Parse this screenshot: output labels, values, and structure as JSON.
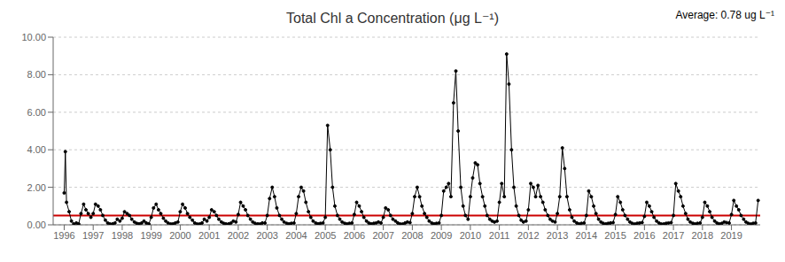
{
  "chart_data": {
    "type": "line",
    "title": "Total Chl a Concentration (μg L⁻¹)",
    "annotations": [
      {
        "text": "Average: 0.78 ug L⁻¹"
      }
    ],
    "reference_lines": [
      {
        "y": 0.5,
        "color": "#cc0000"
      }
    ],
    "color": "#000000",
    "marker": "circle",
    "line_style": "solid",
    "grid": true,
    "xlim": [
      1995.62,
      2019.99
    ],
    "xticks": [
      1996,
      1997,
      1998,
      1999,
      2000,
      2001,
      2002,
      2003,
      2004,
      2005,
      2006,
      2007,
      2008,
      2009,
      2010,
      2011,
      2012,
      2013,
      2014,
      2015,
      2016,
      2017,
      2018,
      2019
    ],
    "ylim": [
      0.0,
      10.0
    ],
    "yticks": [
      {
        "value": 0,
        "label": "0.00"
      },
      {
        "value": 2,
        "label": "2.00"
      },
      {
        "value": 4,
        "label": "4.00"
      },
      {
        "value": 6,
        "label": "6.00"
      },
      {
        "value": 8,
        "label": "8.00"
      },
      {
        "value": 10,
        "label": "10.00"
      }
    ],
    "x": [
      1996,
      1996.04,
      1996.08,
      1996.17,
      1996.25,
      1996.33,
      1996.42,
      1996.5,
      1996.58,
      1996.67,
      1996.75,
      1996.83,
      1996.92,
      1997,
      1997.08,
      1997.17,
      1997.25,
      1997.33,
      1997.42,
      1997.5,
      1997.58,
      1997.67,
      1997.75,
      1997.83,
      1997.92,
      1998,
      1998.08,
      1998.17,
      1998.25,
      1998.33,
      1998.42,
      1998.5,
      1998.58,
      1998.67,
      1998.75,
      1998.83,
      1998.92,
      1999,
      1999.08,
      1999.17,
      1999.25,
      1999.33,
      1999.42,
      1999.5,
      1999.58,
      1999.67,
      1999.75,
      1999.83,
      1999.92,
      2000,
      2000.08,
      2000.17,
      2000.25,
      2000.33,
      2000.42,
      2000.5,
      2000.58,
      2000.67,
      2000.75,
      2000.83,
      2000.92,
      2001,
      2001.08,
      2001.17,
      2001.25,
      2001.33,
      2001.42,
      2001.5,
      2001.58,
      2001.67,
      2001.75,
      2001.83,
      2001.92,
      2002,
      2002.08,
      2002.17,
      2002.25,
      2002.33,
      2002.42,
      2002.5,
      2002.58,
      2002.67,
      2002.75,
      2002.83,
      2002.92,
      2003,
      2003.08,
      2003.17,
      2003.25,
      2003.33,
      2003.42,
      2003.5,
      2003.58,
      2003.67,
      2003.75,
      2003.83,
      2003.92,
      2004,
      2004.08,
      2004.17,
      2004.25,
      2004.33,
      2004.42,
      2004.5,
      2004.58,
      2004.67,
      2004.75,
      2004.83,
      2004.92,
      2005,
      2005.08,
      2005.17,
      2005.25,
      2005.33,
      2005.42,
      2005.5,
      2005.58,
      2005.67,
      2005.75,
      2005.83,
      2005.92,
      2006,
      2006.08,
      2006.17,
      2006.25,
      2006.33,
      2006.42,
      2006.5,
      2006.58,
      2006.67,
      2006.75,
      2006.83,
      2006.92,
      2007,
      2007.08,
      2007.17,
      2007.25,
      2007.33,
      2007.42,
      2007.5,
      2007.58,
      2007.67,
      2007.75,
      2007.83,
      2007.92,
      2008,
      2008.08,
      2008.17,
      2008.25,
      2008.33,
      2008.42,
      2008.5,
      2008.58,
      2008.67,
      2008.75,
      2008.83,
      2008.92,
      2009,
      2009.08,
      2009.17,
      2009.25,
      2009.33,
      2009.42,
      2009.5,
      2009.58,
      2009.67,
      2009.75,
      2009.83,
      2009.92,
      2010,
      2010.08,
      2010.17,
      2010.25,
      2010.33,
      2010.42,
      2010.5,
      2010.58,
      2010.67,
      2010.75,
      2010.83,
      2010.92,
      2011,
      2011.08,
      2011.17,
      2011.25,
      2011.33,
      2011.42,
      2011.5,
      2011.58,
      2011.67,
      2011.75,
      2011.83,
      2011.92,
      2012,
      2012.08,
      2012.17,
      2012.25,
      2012.33,
      2012.42,
      2012.5,
      2012.58,
      2012.67,
      2012.75,
      2012.83,
      2012.92,
      2013,
      2013.08,
      2013.17,
      2013.25,
      2013.33,
      2013.42,
      2013.5,
      2013.58,
      2013.67,
      2013.75,
      2013.83,
      2013.92,
      2014,
      2014.08,
      2014.17,
      2014.25,
      2014.33,
      2014.42,
      2014.5,
      2014.58,
      2014.67,
      2014.75,
      2014.83,
      2014.92,
      2015,
      2015.08,
      2015.17,
      2015.25,
      2015.33,
      2015.42,
      2015.5,
      2015.58,
      2015.67,
      2015.75,
      2015.83,
      2015.92,
      2016,
      2016.08,
      2016.17,
      2016.25,
      2016.33,
      2016.42,
      2016.5,
      2016.58,
      2016.67,
      2016.75,
      2016.83,
      2016.92,
      2017,
      2017.08,
      2017.17,
      2017.25,
      2017.33,
      2017.42,
      2017.5,
      2017.58,
      2017.67,
      2017.75,
      2017.83,
      2017.92,
      2018,
      2018.08,
      2018.17,
      2018.25,
      2018.33,
      2018.42,
      2018.5,
      2018.58,
      2018.67,
      2018.75,
      2018.83,
      2018.92,
      2019,
      2019.08,
      2019.17,
      2019.25,
      2019.33,
      2019.42,
      2019.5,
      2019.58,
      2019.67,
      2019.75,
      2019.83,
      2019.92
    ],
    "values": [
      1.7,
      3.9,
      1.2,
      0.7,
      0.2,
      0.05,
      0.1,
      0.05,
      0.6,
      1.1,
      0.8,
      0.6,
      0.4,
      0.6,
      1.1,
      1.0,
      0.8,
      0.5,
      0.25,
      0.1,
      0.05,
      0.05,
      0.1,
      0.3,
      0.2,
      0.35,
      0.7,
      0.6,
      0.5,
      0.3,
      0.15,
      0.08,
      0.05,
      0.1,
      0.2,
      0.1,
      0.05,
      0.4,
      0.9,
      1.1,
      0.8,
      0.6,
      0.35,
      0.2,
      0.1,
      0.05,
      0.05,
      0.1,
      0.15,
      0.7,
      1.1,
      0.9,
      0.6,
      0.4,
      0.25,
      0.1,
      0.05,
      0.05,
      0.1,
      0.3,
      0.2,
      0.4,
      0.8,
      0.7,
      0.5,
      0.3,
      0.15,
      0.08,
      0.05,
      0.05,
      0.1,
      0.2,
      0.15,
      0.55,
      1.2,
      1.0,
      0.8,
      0.5,
      0.3,
      0.15,
      0.08,
      0.05,
      0.05,
      0.1,
      0.1,
      0.5,
      1.4,
      2.0,
      1.5,
      0.9,
      0.5,
      0.3,
      0.15,
      0.08,
      0.05,
      0.08,
      0.1,
      0.6,
      1.5,
      2.0,
      1.8,
      1.2,
      0.7,
      0.4,
      0.2,
      0.1,
      0.05,
      0.08,
      0.1,
      0.4,
      5.3,
      4.0,
      2.0,
      1.0,
      0.5,
      0.3,
      0.15,
      0.08,
      0.05,
      0.08,
      0.1,
      0.55,
      1.2,
      1.0,
      0.7,
      0.4,
      0.2,
      0.1,
      0.05,
      0.08,
      0.1,
      0.15,
      0.1,
      0.4,
      0.9,
      0.8,
      0.5,
      0.3,
      0.2,
      0.1,
      0.05,
      0.05,
      0.1,
      0.15,
      0.12,
      0.6,
      1.5,
      2.0,
      1.5,
      1.0,
      0.6,
      0.4,
      0.2,
      0.1,
      0.05,
      0.08,
      0.1,
      0.5,
      1.8,
      2.0,
      2.2,
      1.5,
      6.5,
      8.2,
      5.0,
      2.0,
      1.0,
      0.5,
      0.3,
      1.5,
      2.5,
      3.3,
      3.2,
      2.2,
      1.5,
      1.0,
      0.5,
      0.3,
      0.2,
      0.15,
      0.2,
      1.2,
      2.2,
      1.5,
      9.1,
      7.5,
      4.0,
      2.0,
      1.0,
      0.5,
      0.25,
      0.15,
      0.2,
      0.8,
      2.2,
      2.0,
      1.5,
      2.1,
      1.5,
      1.2,
      0.8,
      0.5,
      0.3,
      0.2,
      0.15,
      0.6,
      1.5,
      4.1,
      3.0,
      1.5,
      0.8,
      0.4,
      0.2,
      0.1,
      0.05,
      0.08,
      0.1,
      0.5,
      1.8,
      1.5,
      1.0,
      0.6,
      0.3,
      0.15,
      0.08,
      0.05,
      0.08,
      0.1,
      0.12,
      0.55,
      1.5,
      1.2,
      0.8,
      0.5,
      0.3,
      0.15,
      0.08,
      0.05,
      0.08,
      0.1,
      0.12,
      0.45,
      1.2,
      1.0,
      0.7,
      0.4,
      0.2,
      0.1,
      0.05,
      0.05,
      0.08,
      0.1,
      0.12,
      0.5,
      2.2,
      1.8,
      1.5,
      1.0,
      0.6,
      0.3,
      0.15,
      0.08,
      0.05,
      0.08,
      0.1,
      0.4,
      1.2,
      1.0,
      0.7,
      0.4,
      0.2,
      0.1,
      0.05,
      0.08,
      0.15,
      0.12,
      0.1,
      0.55,
      1.3,
      1.0,
      0.8,
      0.5,
      0.3,
      0.15,
      0.08,
      0.05,
      0.08,
      0.1,
      1.3
    ]
  }
}
